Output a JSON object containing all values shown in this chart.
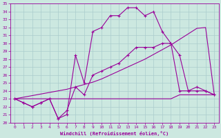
{
  "xlabel": "Windchill (Refroidissement éolien,°C)",
  "bg_color": "#cce8e0",
  "grid_color": "#b8d8d0",
  "line_color": "#990099",
  "xlim": [
    -0.5,
    23.5
  ],
  "ylim": [
    20,
    35
  ],
  "xticks": [
    0,
    1,
    2,
    3,
    4,
    5,
    6,
    7,
    8,
    9,
    10,
    11,
    12,
    13,
    14,
    15,
    16,
    17,
    18,
    19,
    20,
    21,
    22,
    23
  ],
  "yticks": [
    20,
    21,
    22,
    23,
    24,
    25,
    26,
    27,
    28,
    29,
    30,
    31,
    32,
    33,
    34,
    35
  ],
  "hours": [
    0,
    1,
    2,
    3,
    4,
    5,
    6,
    7,
    8,
    9,
    10,
    11,
    12,
    13,
    14,
    15,
    16,
    17,
    18,
    19,
    20,
    21,
    22,
    23
  ],
  "temp": [
    23.0,
    22.5,
    22.0,
    22.5,
    23.0,
    20.5,
    21.0,
    28.5,
    25.0,
    31.5,
    32.0,
    33.5,
    33.5,
    34.5,
    34.5,
    33.5,
    34.0,
    31.5,
    30.0,
    28.5,
    24.0,
    24.5,
    24.0,
    23.5
  ],
  "windchill": [
    23.0,
    22.5,
    22.0,
    22.5,
    23.0,
    20.5,
    21.5,
    24.5,
    23.5,
    26.0,
    26.5,
    27.0,
    27.5,
    28.5,
    29.5,
    29.5,
    29.5,
    30.0,
    30.0,
    24.0,
    24.0,
    24.0,
    24.0,
    23.5
  ],
  "linear_flat": [
    23.0,
    23.0,
    23.0,
    23.0,
    23.0,
    23.0,
    23.0,
    23.0,
    23.0,
    23.0,
    23.0,
    23.0,
    23.0,
    23.0,
    23.0,
    23.0,
    23.0,
    23.0,
    23.0,
    23.5,
    23.5,
    23.5,
    23.5,
    23.5
  ],
  "linear_rise": [
    23.0,
    23.2,
    23.4,
    23.6,
    23.8,
    24.0,
    24.2,
    24.5,
    24.8,
    25.1,
    25.5,
    26.0,
    26.5,
    27.0,
    27.5,
    28.0,
    28.6,
    29.2,
    29.8,
    30.5,
    31.2,
    31.9,
    32.0,
    23.5
  ]
}
